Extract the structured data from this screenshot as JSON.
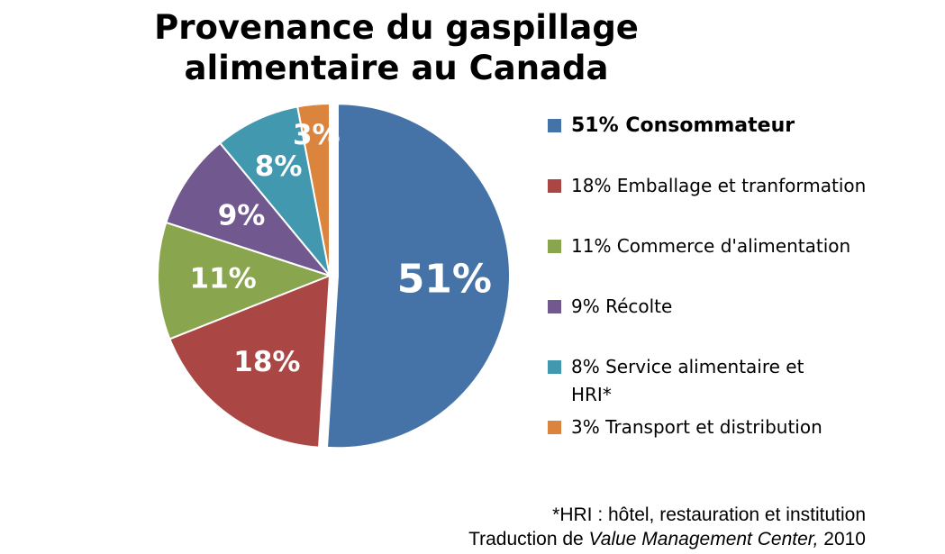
{
  "chart_data": {
    "type": "pie",
    "title": "Provenance du gaspillage alimentaire au Canada",
    "slices": [
      {
        "label": "51%",
        "legend": "51% Consommateur",
        "value": 51,
        "color": "#4572A7",
        "label_color": "#ffffff",
        "exploded": true,
        "bold_legend": true
      },
      {
        "label": "18%",
        "legend": "18% Emballage et tranformation",
        "value": 18,
        "color": "#AA4643",
        "label_color": "#ffffff",
        "exploded": false,
        "bold_legend": false
      },
      {
        "label": "11%",
        "legend": "11% Commerce d'alimentation",
        "value": 11,
        "color": "#89A54E",
        "label_color": "#ffffff",
        "exploded": false,
        "bold_legend": false
      },
      {
        "label": "9%",
        "legend": "9% Récolte",
        "value": 9,
        "color": "#71588F",
        "label_color": "#ffffff",
        "exploded": false,
        "bold_legend": false
      },
      {
        "label": "8%",
        "legend": "8% Service alimentaire et HRI*",
        "value": 8,
        "color": "#4198AF",
        "label_color": "#ffffff",
        "exploded": false,
        "bold_legend": false
      },
      {
        "label": "3%",
        "legend": "3% Transport et distribution",
        "value": 3,
        "color": "#DB843D",
        "label_color": "#000000",
        "exploded": false,
        "bold_legend": false
      }
    ],
    "legend_position": "right"
  },
  "footnote": {
    "line1": "*HRI : hôtel, restauration et institution",
    "line2_prefix": "Traduction de ",
    "line2_italic": "Value Management Center,",
    "line2_suffix": " 2010"
  }
}
